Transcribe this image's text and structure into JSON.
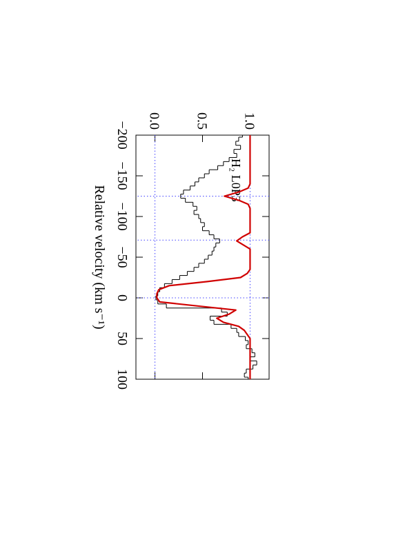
{
  "chart_data": {
    "type": "line",
    "x_label": "Relative velocity (km s⁻¹)",
    "annotation": "H₂ L0P3",
    "xlim": [
      -200,
      100
    ],
    "ylim": [
      -0.2,
      1.2
    ],
    "xticks": [
      {
        "value": -200,
        "label": "−200"
      },
      {
        "value": -150,
        "label": "−150"
      },
      {
        "value": -100,
        "label": "−100"
      },
      {
        "value": -50,
        "label": "−50"
      },
      0,
      50,
      100
    ],
    "yticks": [
      {
        "value": 0,
        "label": "0.0"
      },
      0.5,
      {
        "value": 1,
        "label": "1.0"
      }
    ],
    "vlines": [
      -125,
      -71,
      0
    ],
    "hlines": [
      0,
      1
    ],
    "x": [
      -200,
      -195,
      -190,
      -185,
      -180,
      -175,
      -170,
      -165,
      -160,
      -155,
      -150,
      -145,
      -140,
      -135,
      -130,
      -125,
      -120,
      -115,
      -110,
      -105,
      -100,
      -95,
      -90,
      -85,
      -80,
      -75,
      -70,
      -65,
      -60,
      -55,
      -50,
      -45,
      -40,
      -35,
      -30,
      -25,
      -20,
      -15,
      -10,
      -5,
      0,
      5,
      10,
      15,
      20,
      25,
      30,
      35,
      40,
      45,
      50,
      55,
      60,
      65,
      70,
      75,
      80,
      85,
      90,
      95,
      100
    ],
    "series": [
      {
        "style": "steps",
        "color": "#000000",
        "values": [
          0.92,
          0.88,
          0.85,
          0.9,
          0.83,
          0.86,
          0.78,
          0.72,
          0.66,
          0.57,
          0.52,
          0.46,
          0.42,
          0.37,
          0.3,
          0.27,
          0.32,
          0.4,
          0.44,
          0.41,
          0.46,
          0.48,
          0.52,
          0.5,
          0.57,
          0.62,
          0.68,
          0.64,
          0.62,
          0.6,
          0.56,
          0.52,
          0.46,
          0.41,
          0.34,
          0.26,
          0.18,
          0.1,
          0.05,
          0.03,
          0.01,
          0.03,
          0.12,
          0.7,
          0.76,
          0.58,
          0.62,
          0.8,
          0.86,
          0.88,
          0.95,
          0.98,
          0.96,
          1.02,
          1.05,
          1.0,
          1.07,
          1.03,
          0.96,
          0.94,
          0.98
        ]
      },
      {
        "style": "smooth",
        "color": "#d00000",
        "values": [
          1,
          1,
          1,
          1,
          1,
          1,
          1,
          1,
          1,
          1,
          1,
          1,
          1,
          0.98,
          0.88,
          0.73,
          0.88,
          0.98,
          1,
          1,
          1,
          1,
          1,
          1,
          1,
          0.92,
          0.86,
          0.93,
          1,
          1,
          1,
          1,
          1,
          1,
          0.97,
          0.9,
          0.55,
          0.15,
          0.04,
          0.02,
          0.02,
          0.05,
          0.45,
          0.85,
          0.78,
          0.65,
          0.72,
          0.88,
          0.94,
          0.97,
          1,
          1,
          1,
          1,
          1,
          1,
          1,
          1,
          1,
          1,
          1
        ]
      }
    ]
  }
}
